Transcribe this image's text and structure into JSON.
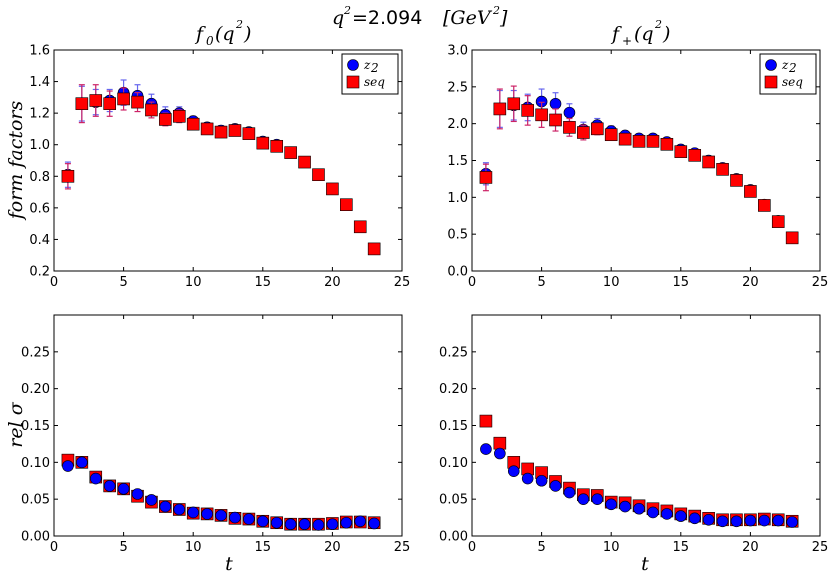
{
  "header": {
    "q_label": "q",
    "q_exp": "2",
    "equals_value": "=2.094",
    "unit_open": "[GeV",
    "unit_exp": "2",
    "unit_close": " ]"
  },
  "chart_data": [
    {
      "type": "scatter",
      "title_main": "f",
      "title_sub": "0",
      "title_arg": "(q",
      "title_exp": "2",
      "title_close": " )",
      "ylabel": "form factors",
      "xlabel": "",
      "xlim": [
        0,
        25
      ],
      "ylim": [
        0.2,
        1.6
      ],
      "xticks": [
        "0",
        "5",
        "10",
        "15",
        "20",
        "25"
      ],
      "yticks": [
        "0.2",
        "0.4",
        "0.6",
        "0.8",
        "1.0",
        "1.2",
        "1.4",
        "1.6"
      ],
      "legend": {
        "placement": "top-right",
        "entries": [
          {
            "label": "z",
            "sub": "2",
            "marker": "circle",
            "color": "#0000ff"
          },
          {
            "label": "seq",
            "sub": "",
            "marker": "square",
            "color": "#ff0000"
          }
        ]
      },
      "series": [
        {
          "name": "z2",
          "marker": "circle",
          "color": "#0000ff",
          "err_color": "#6666ee",
          "x": [
            1,
            2,
            3,
            4,
            5,
            6,
            7,
            8,
            9,
            10,
            11,
            12,
            13,
            14,
            15,
            16,
            17,
            18,
            19,
            20,
            21,
            22,
            23
          ],
          "y": [
            0.81,
            1.26,
            1.27,
            1.28,
            1.33,
            1.31,
            1.26,
            1.19,
            1.2,
            1.15,
            1.11,
            1.09,
            1.1,
            1.08,
            1.02,
            1.0,
            0.95,
            0.89,
            0.81,
            0.72,
            0.62,
            0.48,
            0.34
          ],
          "err": [
            0.08,
            0.11,
            0.08,
            0.07,
            0.08,
            0.07,
            0.06,
            0.05,
            0.04,
            0.03,
            0.03,
            0.03,
            0.03,
            0.02,
            0.02,
            0.02,
            0.02,
            0.02,
            0.02,
            0.02,
            0.01,
            0.01,
            0.01
          ]
        },
        {
          "name": "seq",
          "marker": "square",
          "color": "#ff0000",
          "err_color": "#cc2266",
          "x": [
            1,
            2,
            3,
            4,
            5,
            6,
            7,
            8,
            9,
            10,
            11,
            12,
            13,
            14,
            15,
            16,
            17,
            18,
            19,
            20,
            21,
            22,
            23
          ],
          "y": [
            0.8,
            1.26,
            1.28,
            1.26,
            1.29,
            1.27,
            1.22,
            1.16,
            1.18,
            1.13,
            1.1,
            1.08,
            1.09,
            1.07,
            1.01,
            0.99,
            0.95,
            0.89,
            0.81,
            0.72,
            0.62,
            0.48,
            0.34
          ],
          "err": [
            0.08,
            0.12,
            0.1,
            0.08,
            0.07,
            0.06,
            0.05,
            0.04,
            0.04,
            0.03,
            0.03,
            0.03,
            0.02,
            0.02,
            0.02,
            0.02,
            0.02,
            0.02,
            0.02,
            0.02,
            0.01,
            0.01,
            0.01
          ]
        }
      ]
    },
    {
      "type": "scatter",
      "title_main": "f",
      "title_sub": "+",
      "title_arg": "(q",
      "title_exp": "2",
      "title_close": " )",
      "ylabel": "",
      "xlabel": "",
      "xlim": [
        0,
        25
      ],
      "ylim": [
        0.0,
        3.0
      ],
      "xticks": [
        "0",
        "5",
        "10",
        "15",
        "20",
        "25"
      ],
      "yticks": [
        "0.0",
        "0.5",
        "1.0",
        "1.5",
        "2.0",
        "2.5",
        "3.0"
      ],
      "legend": {
        "placement": "top-right",
        "entries": [
          {
            "label": "z",
            "sub": "2",
            "marker": "circle",
            "color": "#0000ff"
          },
          {
            "label": "seq",
            "sub": "",
            "marker": "square",
            "color": "#ff0000"
          }
        ]
      },
      "series": [
        {
          "name": "z2",
          "marker": "circle",
          "color": "#0000ff",
          "err_color": "#6666ee",
          "x": [
            1,
            2,
            3,
            4,
            5,
            6,
            7,
            8,
            9,
            10,
            11,
            12,
            13,
            14,
            15,
            16,
            17,
            18,
            19,
            20,
            21,
            22,
            23
          ],
          "y": [
            1.32,
            2.2,
            2.25,
            2.22,
            2.3,
            2.27,
            2.15,
            1.92,
            1.98,
            1.9,
            1.84,
            1.8,
            1.8,
            1.75,
            1.65,
            1.6,
            1.5,
            1.4,
            1.25,
            1.1,
            0.9,
            0.68,
            0.45
          ],
          "err": [
            0.15,
            0.25,
            0.2,
            0.18,
            0.17,
            0.15,
            0.12,
            0.1,
            0.09,
            0.07,
            0.06,
            0.05,
            0.05,
            0.04,
            0.04,
            0.04,
            0.03,
            0.03,
            0.03,
            0.03,
            0.02,
            0.02,
            0.02
          ]
        },
        {
          "name": "seq",
          "marker": "square",
          "color": "#ff0000",
          "err_color": "#cc2266",
          "x": [
            1,
            2,
            3,
            4,
            5,
            6,
            7,
            8,
            9,
            10,
            11,
            12,
            13,
            14,
            15,
            16,
            17,
            18,
            19,
            20,
            21,
            22,
            23
          ],
          "y": [
            1.27,
            2.2,
            2.27,
            2.18,
            2.12,
            2.05,
            1.95,
            1.88,
            1.93,
            1.85,
            1.79,
            1.76,
            1.76,
            1.72,
            1.62,
            1.57,
            1.48,
            1.38,
            1.23,
            1.08,
            0.89,
            0.67,
            0.45
          ],
          "err": [
            0.18,
            0.27,
            0.24,
            0.2,
            0.17,
            0.15,
            0.12,
            0.1,
            0.08,
            0.07,
            0.06,
            0.05,
            0.05,
            0.04,
            0.04,
            0.04,
            0.03,
            0.03,
            0.03,
            0.03,
            0.02,
            0.02,
            0.02
          ]
        }
      ]
    },
    {
      "type": "scatter",
      "ylabel": "rel σ",
      "xlabel": "t",
      "xlim": [
        0,
        25
      ],
      "ylim": [
        0.0,
        0.3
      ],
      "xticks": [
        "0",
        "5",
        "10",
        "15",
        "20",
        "25"
      ],
      "yticks": [
        "0.00",
        "0.05",
        "0.10",
        "0.15",
        "0.20",
        "0.25"
      ],
      "series": [
        {
          "name": "seq",
          "marker": "square",
          "color": "#ff0000",
          "x": [
            1,
            2,
            3,
            4,
            5,
            6,
            7,
            8,
            9,
            10,
            11,
            12,
            13,
            14,
            15,
            16,
            17,
            18,
            19,
            20,
            21,
            22,
            23
          ],
          "y": [
            0.103,
            0.1,
            0.08,
            0.068,
            0.064,
            0.054,
            0.046,
            0.04,
            0.036,
            0.031,
            0.03,
            0.028,
            0.024,
            0.023,
            0.02,
            0.018,
            0.016,
            0.016,
            0.016,
            0.017,
            0.019,
            0.019,
            0.018
          ]
        },
        {
          "name": "z2",
          "marker": "circle",
          "color": "#0000ff",
          "x": [
            1,
            2,
            3,
            4,
            5,
            6,
            7,
            8,
            9,
            10,
            11,
            12,
            13,
            14,
            15,
            16,
            17,
            18,
            19,
            20,
            21,
            22,
            23
          ],
          "y": [
            0.095,
            0.1,
            0.078,
            0.068,
            0.064,
            0.057,
            0.049,
            0.04,
            0.036,
            0.032,
            0.03,
            0.028,
            0.025,
            0.023,
            0.02,
            0.018,
            0.016,
            0.016,
            0.015,
            0.016,
            0.018,
            0.02,
            0.017
          ]
        }
      ]
    },
    {
      "type": "scatter",
      "ylabel": "",
      "xlabel": "t",
      "xlim": [
        0,
        25
      ],
      "ylim": [
        0.0,
        0.3
      ],
      "xticks": [
        "0",
        "5",
        "10",
        "15",
        "20",
        "25"
      ],
      "yticks": [
        "0.00",
        "0.05",
        "0.10",
        "0.15",
        "0.20",
        "0.25"
      ],
      "series": [
        {
          "name": "seq",
          "marker": "square",
          "color": "#ff0000",
          "x": [
            1,
            2,
            3,
            4,
            5,
            6,
            7,
            8,
            9,
            10,
            11,
            12,
            13,
            14,
            15,
            16,
            17,
            18,
            19,
            20,
            21,
            22,
            23
          ],
          "y": [
            0.156,
            0.126,
            0.1,
            0.091,
            0.086,
            0.074,
            0.065,
            0.056,
            0.055,
            0.046,
            0.045,
            0.041,
            0.037,
            0.034,
            0.03,
            0.027,
            0.024,
            0.022,
            0.022,
            0.022,
            0.023,
            0.022,
            0.02
          ]
        },
        {
          "name": "z2",
          "marker": "circle",
          "color": "#0000ff",
          "x": [
            1,
            2,
            3,
            4,
            5,
            6,
            7,
            8,
            9,
            10,
            11,
            12,
            13,
            14,
            15,
            16,
            17,
            18,
            19,
            20,
            21,
            22,
            23
          ],
          "y": [
            0.118,
            0.112,
            0.088,
            0.078,
            0.075,
            0.068,
            0.059,
            0.05,
            0.05,
            0.043,
            0.04,
            0.037,
            0.032,
            0.03,
            0.027,
            0.024,
            0.022,
            0.02,
            0.02,
            0.021,
            0.021,
            0.021,
            0.019
          ]
        }
      ]
    }
  ]
}
